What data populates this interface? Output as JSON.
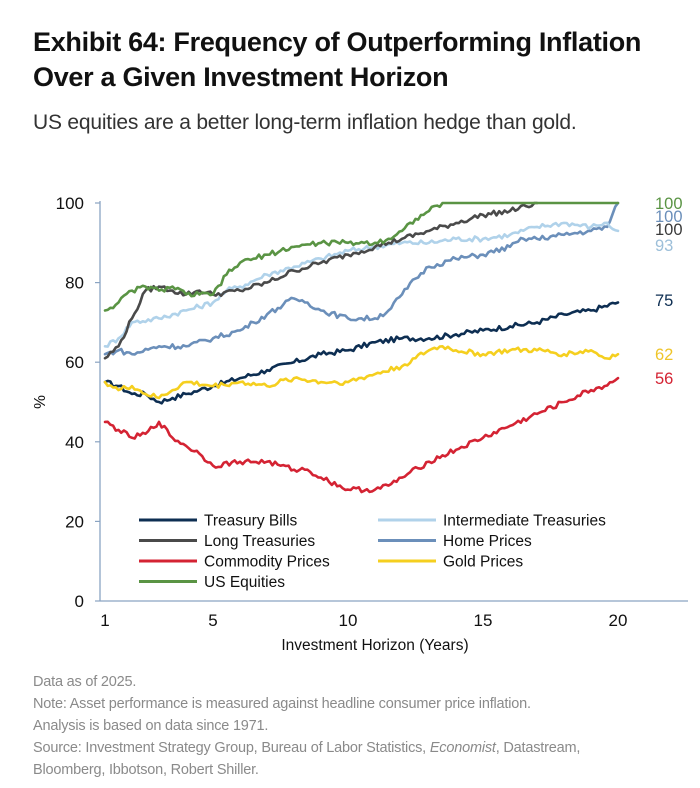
{
  "header": {
    "title": "Exhibit 64: Frequency of Outperforming Inflation Over a Given Investment Horizon",
    "subtitle": "US equities are a better long-term inflation hedge than gold."
  },
  "footer": {
    "data_as_of": "Data as of 2025.",
    "note": "Note: Asset performance is measured against headline consumer price inflation.",
    "analysis": "Analysis is based on data since 1971.",
    "source_prefix": "Source: Investment Strategy Group, Bureau of Labor Statistics, ",
    "source_italic": "Economist",
    "source_suffix": ", Datastream,",
    "source_line2": "Bloomberg, Ibbotson, Robert Shiller."
  },
  "chart_data": {
    "type": "line",
    "title": "Exhibit 64: Frequency of Outperforming Inflation Over a Given Investment Horizon",
    "subtitle": "US equities are a better long-term inflation hedge than gold.",
    "xlabel": "Investment Horizon (Years)",
    "ylabel": "%",
    "xlim": [
      1,
      21.5
    ],
    "ylim": [
      0,
      100
    ],
    "xticks": [
      1,
      5,
      10,
      15,
      20
    ],
    "yticks": [
      0,
      20,
      40,
      60,
      80,
      100
    ],
    "grid": false,
    "legend_position": "lower-left",
    "series": [
      {
        "name": "Treasury Bills",
        "color": "#0d2e52",
        "end_label": "75",
        "points": [
          [
            1,
            55
          ],
          [
            1.5,
            54
          ],
          [
            2,
            52
          ],
          [
            2.5,
            52
          ],
          [
            3,
            50
          ],
          [
            3.5,
            51
          ],
          [
            4,
            52
          ],
          [
            4.5,
            53
          ],
          [
            5,
            54
          ],
          [
            6,
            56
          ],
          [
            7,
            58
          ],
          [
            8,
            60
          ],
          [
            9,
            62
          ],
          [
            10,
            63
          ],
          [
            11,
            65
          ],
          [
            12,
            66
          ],
          [
            13,
            66
          ],
          [
            14,
            67
          ],
          [
            15,
            68
          ],
          [
            16,
            69
          ],
          [
            17,
            70
          ],
          [
            18,
            72
          ],
          [
            19,
            73
          ],
          [
            20,
            75
          ]
        ]
      },
      {
        "name": "Intermediate Treasuries",
        "color": "#b0d2ea",
        "end_label": "93",
        "points": [
          [
            1,
            64
          ],
          [
            1.5,
            66
          ],
          [
            2,
            70
          ],
          [
            3,
            71
          ],
          [
            4,
            73
          ],
          [
            5,
            75
          ],
          [
            5.5,
            78
          ],
          [
            6,
            79
          ],
          [
            7,
            82
          ],
          [
            8,
            84
          ],
          [
            9,
            86
          ],
          [
            10,
            88
          ],
          [
            11,
            89
          ],
          [
            12,
            90
          ],
          [
            13,
            90
          ],
          [
            14,
            91
          ],
          [
            15,
            91
          ],
          [
            16,
            92
          ],
          [
            17,
            94
          ],
          [
            18,
            95
          ],
          [
            19,
            94
          ],
          [
            19.5,
            95
          ],
          [
            20,
            93
          ]
        ]
      },
      {
        "name": "Long Treasuries",
        "color": "#4a4a4a",
        "end_label": "100",
        "points": [
          [
            1,
            61
          ],
          [
            1.5,
            64
          ],
          [
            2,
            71
          ],
          [
            2.5,
            78
          ],
          [
            3,
            79
          ],
          [
            3.5,
            78
          ],
          [
            4,
            77
          ],
          [
            4.5,
            78
          ],
          [
            5,
            77
          ],
          [
            6,
            78
          ],
          [
            7,
            80
          ],
          [
            8,
            83
          ],
          [
            9,
            85
          ],
          [
            10,
            87
          ],
          [
            11,
            89
          ],
          [
            11.5,
            90
          ],
          [
            12,
            91
          ],
          [
            13,
            93
          ],
          [
            14,
            95
          ],
          [
            15,
            97
          ],
          [
            16,
            98
          ],
          [
            17,
            100
          ]
        ]
      },
      {
        "name": "Home Prices",
        "color": "#6b8fba",
        "end_label": "100",
        "points": [
          [
            1,
            62
          ],
          [
            1.5,
            63
          ],
          [
            2,
            62
          ],
          [
            3,
            64
          ],
          [
            4,
            64
          ],
          [
            5,
            66
          ],
          [
            6,
            68
          ],
          [
            6.5,
            70
          ],
          [
            7,
            72
          ],
          [
            8,
            76
          ],
          [
            8.5,
            75
          ],
          [
            9,
            73
          ],
          [
            10,
            71
          ],
          [
            11,
            71
          ],
          [
            11.5,
            73
          ],
          [
            12,
            77
          ],
          [
            12.5,
            81
          ],
          [
            13,
            84
          ],
          [
            14,
            86
          ],
          [
            15,
            87
          ],
          [
            16,
            89
          ],
          [
            16.5,
            91
          ],
          [
            17,
            91
          ],
          [
            18,
            92
          ],
          [
            19,
            93
          ],
          [
            19.6,
            94
          ],
          [
            20,
            100
          ]
        ]
      },
      {
        "name": "Commodity Prices",
        "color": "#d42333",
        "end_label": "56",
        "points": [
          [
            1,
            45
          ],
          [
            1.5,
            43
          ],
          [
            2,
            41
          ],
          [
            2.5,
            42
          ],
          [
            3,
            45
          ],
          [
            3.5,
            41
          ],
          [
            4,
            39
          ],
          [
            4.5,
            37
          ],
          [
            5,
            34
          ],
          [
            6,
            35
          ],
          [
            7,
            35
          ],
          [
            7.5,
            34
          ],
          [
            8,
            33
          ],
          [
            8.5,
            33
          ],
          [
            9,
            31
          ],
          [
            10,
            28
          ],
          [
            11,
            28
          ],
          [
            11.5,
            29
          ],
          [
            12,
            31
          ],
          [
            13,
            35
          ],
          [
            14,
            38
          ],
          [
            15,
            41
          ],
          [
            16,
            44
          ],
          [
            17,
            47
          ],
          [
            18,
            50
          ],
          [
            19,
            53
          ],
          [
            19.5,
            54
          ],
          [
            20,
            56
          ]
        ]
      },
      {
        "name": "Gold Prices",
        "color": "#f5cf1f",
        "end_label": "62",
        "points": [
          [
            1,
            55
          ],
          [
            1.5,
            53
          ],
          [
            2,
            54
          ],
          [
            2.5,
            52
          ],
          [
            3,
            51
          ],
          [
            3.5,
            53
          ],
          [
            4,
            55
          ],
          [
            5,
            54
          ],
          [
            6,
            55
          ],
          [
            7,
            54
          ],
          [
            8,
            56
          ],
          [
            9,
            55
          ],
          [
            10,
            55
          ],
          [
            11,
            57
          ],
          [
            12,
            59
          ],
          [
            12.5,
            61
          ],
          [
            13,
            63
          ],
          [
            13.5,
            64
          ],
          [
            14,
            63
          ],
          [
            15,
            62
          ],
          [
            16,
            63
          ],
          [
            17,
            63
          ],
          [
            18,
            62
          ],
          [
            19,
            63
          ],
          [
            19.5,
            61
          ],
          [
            20,
            62
          ]
        ]
      },
      {
        "name": "US Equities",
        "color": "#5a9444",
        "end_label": "100",
        "points": [
          [
            1,
            73
          ],
          [
            1.5,
            75
          ],
          [
            2,
            78
          ],
          [
            2.5,
            79
          ],
          [
            3,
            78
          ],
          [
            3.5,
            79
          ],
          [
            4,
            77
          ],
          [
            4.5,
            77
          ],
          [
            5,
            77
          ],
          [
            5.5,
            82
          ],
          [
            6,
            85
          ],
          [
            6.5,
            86
          ],
          [
            7,
            87
          ],
          [
            8,
            89
          ],
          [
            9,
            90
          ],
          [
            10,
            90
          ],
          [
            11,
            90
          ],
          [
            11.5,
            91
          ],
          [
            12,
            93
          ],
          [
            12.5,
            96
          ],
          [
            13,
            98
          ],
          [
            13.5,
            100
          ],
          [
            20,
            100
          ]
        ]
      }
    ]
  }
}
